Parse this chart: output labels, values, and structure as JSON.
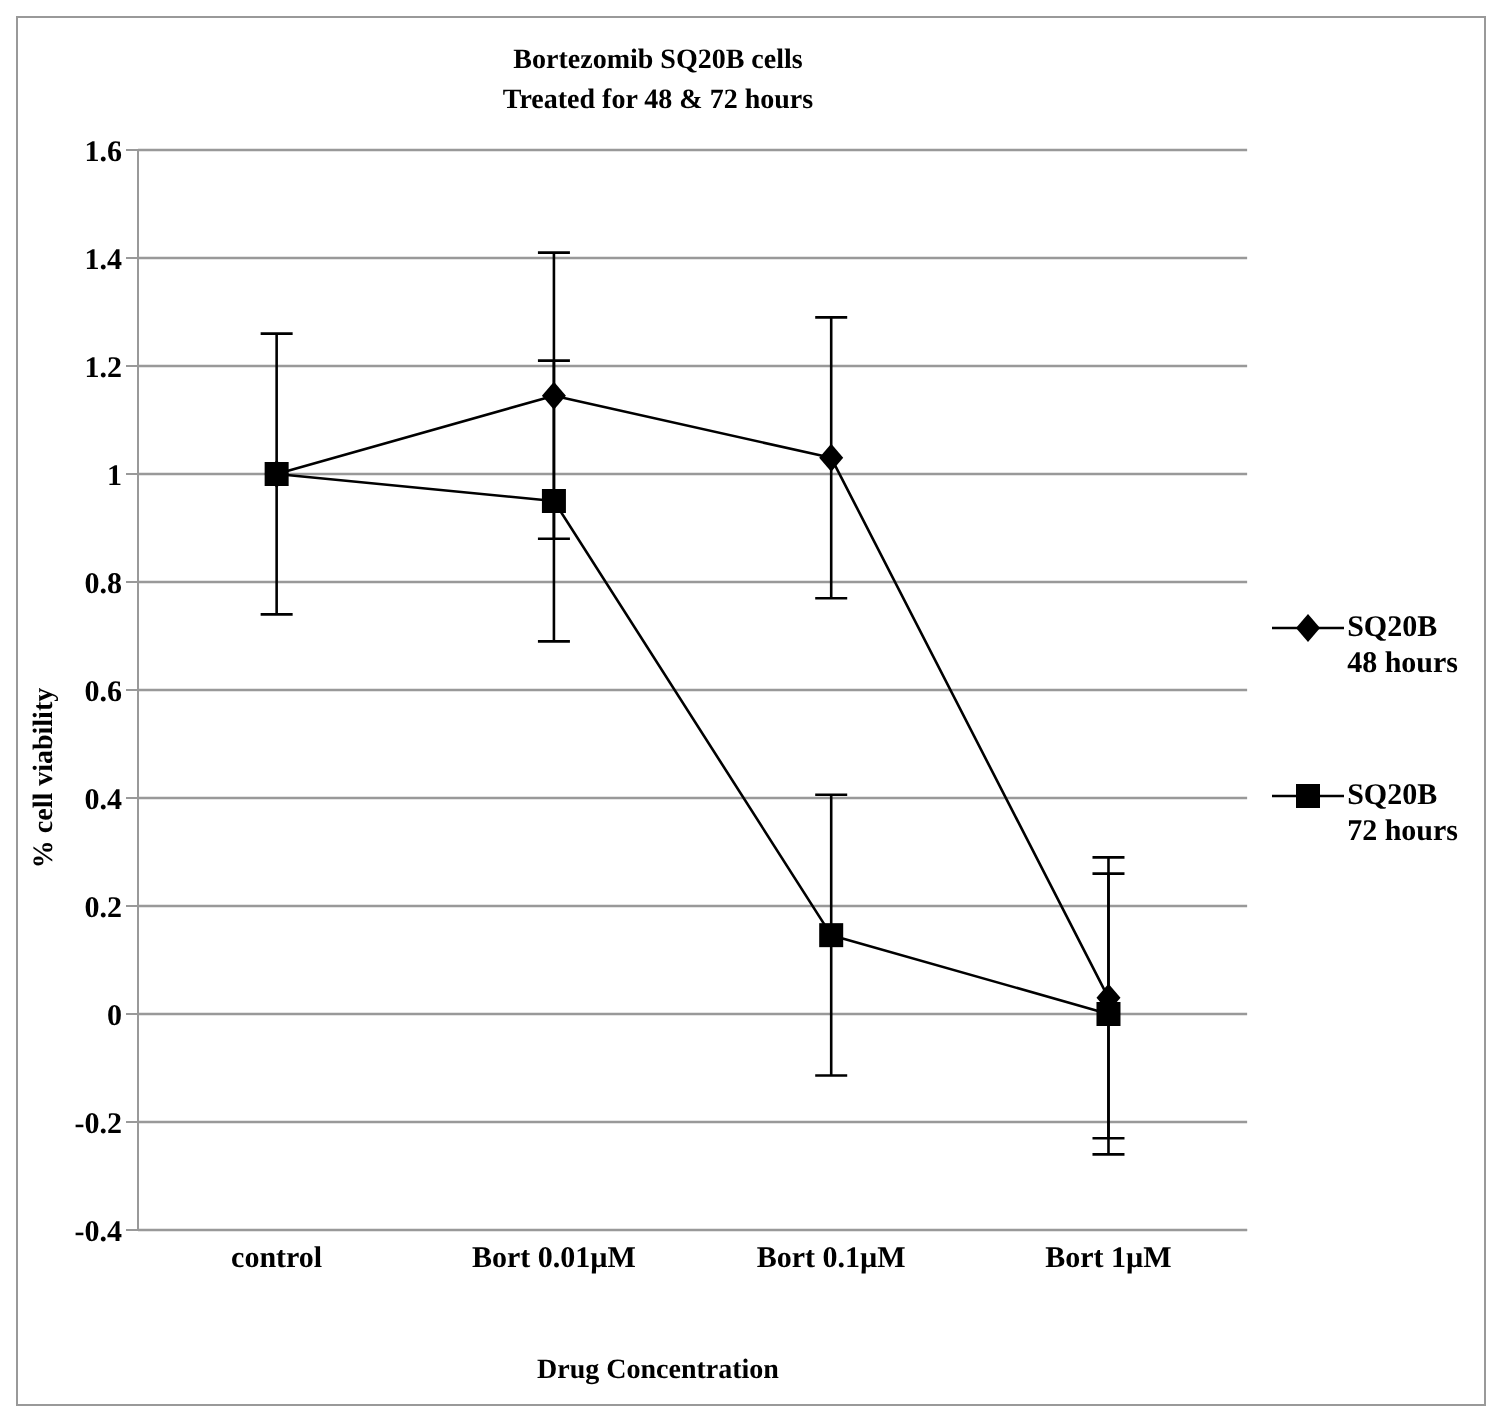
{
  "chart_data": {
    "type": "line",
    "title": "Bortezomib SQ20B cells\nTreated for 48 & 72 hours",
    "xlabel": "Drug Concentration",
    "ylabel": "% cell viability",
    "categories": [
      "control",
      "Bort 0.01µM",
      "Bort 0.1µM",
      "Bort 1µM"
    ],
    "series": [
      {
        "name": "SQ20B\n48 hours",
        "color": "#000000",
        "marker": "diamond",
        "values": [
          1.0,
          1.145,
          1.03,
          0.03
        ],
        "errors": [
          0.26,
          0.265,
          0.26,
          0.26
        ]
      },
      {
        "name": "SQ20B\n72 hours",
        "color": "#000000",
        "marker": "square",
        "values": [
          1.0,
          0.95,
          0.146,
          0.0
        ],
        "errors": [
          null,
          0.26,
          0.26,
          0.26
        ]
      }
    ],
    "ylim": [
      -0.4,
      1.6
    ],
    "yticks": [
      -0.4,
      -0.2,
      0,
      0.2,
      0.4,
      0.6,
      0.8,
      1,
      1.2,
      1.4,
      1.6
    ],
    "grid": "y",
    "legend": "right",
    "line_style": "solid"
  }
}
